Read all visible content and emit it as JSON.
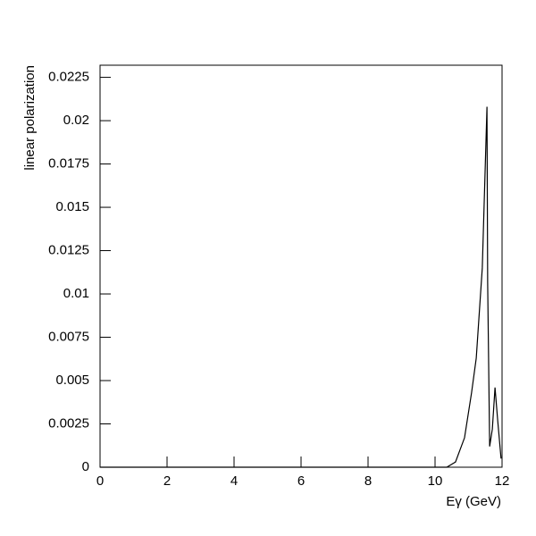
{
  "chart_data": {
    "type": "line",
    "x_label": "Eγ (GeV)",
    "y_label": "linear polarization",
    "x": [
      0,
      2,
      4,
      6,
      8,
      10,
      10.35,
      10.61,
      10.88,
      11.09,
      11.23,
      11.41,
      11.55,
      11.57,
      11.63,
      11.71,
      11.79,
      11.87,
      11.97
    ],
    "series": [
      {
        "name": "linear polarization",
        "color": "#000000",
        "values": [
          0,
          0,
          0,
          0,
          0,
          0,
          0,
          0.0003,
          0.0017,
          0.0043,
          0.0063,
          0.0115,
          0.0208,
          0.0107,
          0.0012,
          0.0022,
          0.0046,
          0.0027,
          0.0005
        ]
      }
    ],
    "xlim": [
      0,
      12
    ],
    "xticks": [
      0,
      2,
      4,
      6,
      8,
      10,
      12
    ],
    "ylim": [
      0,
      0.0232
    ],
    "yticks": [
      0,
      0.0025,
      0.005,
      0.0075,
      0.01,
      0.0125,
      0.015,
      0.0175,
      0.02,
      0.0225
    ],
    "grid": false
  }
}
